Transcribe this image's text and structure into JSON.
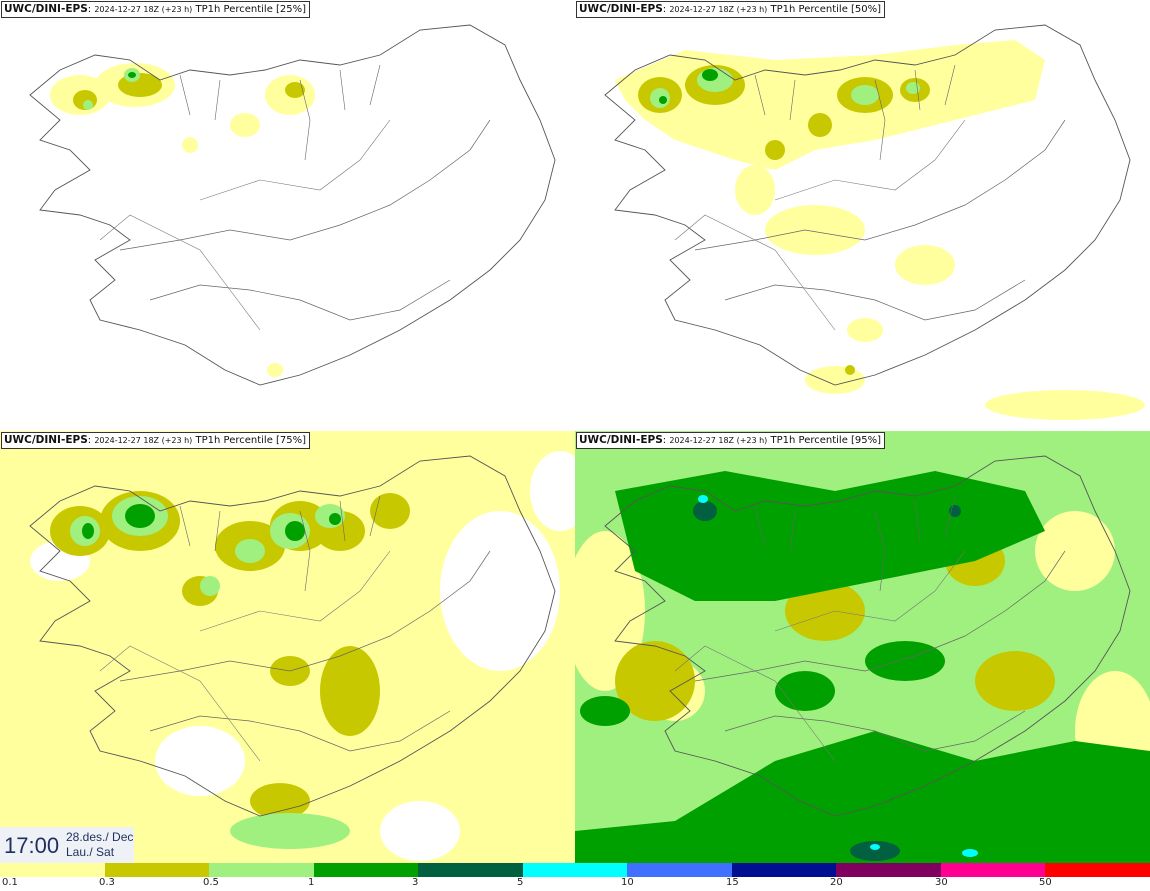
{
  "panels": [
    {
      "model": "UWC/DINI-EPS",
      "run": "2024-12-27 18Z (+23 h)",
      "param": "TP1h Percentile [25%]"
    },
    {
      "model": "UWC/DINI-EPS",
      "run": "2024-12-27 18Z (+23 h)",
      "param": "TP1h Percentile [50%]"
    },
    {
      "model": "UWC/DINI-EPS",
      "run": "2024-12-27 18Z (+23 h)",
      "param": "TP1h Percentile [75%]"
    },
    {
      "model": "UWC/DINI-EPS",
      "run": "2024-12-27 18Z (+23 h)",
      "param": "TP1h Percentile [95%]"
    }
  ],
  "time": {
    "clock": "17:00",
    "date_line1": "28.des./ Dec",
    "date_line2": "Lau./ Sat"
  },
  "colorbar": {
    "colors": [
      "#ffff9e",
      "#c8c800",
      "#a0f080",
      "#00a000",
      "#006040",
      "#00ffff",
      "#4070ff",
      "#001090",
      "#800060",
      "#ff0090",
      "#ff0000"
    ],
    "labels": [
      "0.1",
      "0.3",
      "0.5",
      "1",
      "3",
      "5",
      "10",
      "15",
      "20",
      "30",
      "50"
    ]
  },
  "colors": {
    "outline": "#555555",
    "light_yellow": "#ffff9e",
    "olive": "#c8c800",
    "light_green": "#a0f080",
    "green": "#00a000",
    "dark_green": "#006040",
    "cyan": "#00ffff"
  }
}
